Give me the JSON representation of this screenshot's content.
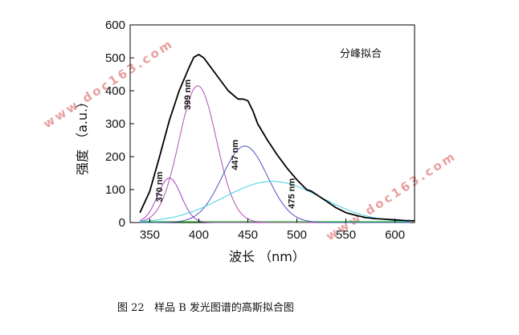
{
  "chart_data": {
    "type": "line",
    "title": "",
    "legend_text": "分峰拟合",
    "xlabel": "波长 （nm）",
    "ylabel": "强度 （a.u.）",
    "xlim": [
      330,
      620
    ],
    "ylim": [
      0,
      600
    ],
    "xticks": [
      350,
      400,
      450,
      500,
      550,
      600
    ],
    "yticks": [
      0,
      100,
      200,
      300,
      400,
      500,
      600
    ],
    "series": [
      {
        "color": "#000000",
        "x": [
          340,
          350,
          360,
          370,
          380,
          390,
          395,
          400,
          405,
          410,
          420,
          430,
          440,
          445,
          450,
          455,
          460,
          470,
          480,
          490,
          500,
          510,
          515,
          520,
          530,
          540,
          550,
          560,
          570,
          580,
          590,
          600,
          610,
          620
        ],
        "y": [
          30,
          95,
          200,
          310,
          400,
          470,
          502,
          510,
          500,
          480,
          440,
          400,
          375,
          375,
          370,
          340,
          300,
          250,
          205,
          165,
          130,
          100,
          95,
          85,
          65,
          45,
          30,
          22,
          15,
          12,
          10,
          8,
          6,
          5
        ]
      },
      {
        "color": "#a040c0",
        "center": 370,
        "amplitude": 135,
        "sigma": 12
      },
      {
        "color": "#b050b0",
        "center": 399,
        "amplitude": 415,
        "sigma": 19
      },
      {
        "color": "#5050c0",
        "center": 447,
        "amplitude": 232,
        "sigma": 23
      },
      {
        "color": "#40d0e0",
        "center": 475,
        "amplitude": 125,
        "sigma": 50
      }
    ],
    "peak_labels": [
      {
        "text": "370 nm",
        "x": 370,
        "y": 145
      },
      {
        "text": "399 nm",
        "x": 399,
        "y": 425
      },
      {
        "text": "447 nm",
        "x": 447,
        "y": 242
      },
      {
        "text": "475 nm",
        "x": 505,
        "y": 125
      }
    ],
    "baseline_color": "#20c020",
    "grid": false
  },
  "watermarks": [
    "www.doc163.com",
    "www.doc163.com"
  ],
  "caption": "图 22   样品 B 发光图谱的高斯拟合图"
}
